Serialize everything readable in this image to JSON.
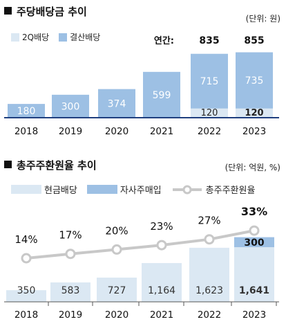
{
  "chart_data": [
    {
      "type": "bar",
      "title": "주당배당금 추이",
      "unit_label": "(단위: 원)",
      "categories": [
        "2018",
        "2019",
        "2020",
        "2021",
        "2022",
        "2023"
      ],
      "series": [
        {
          "name": "2Q배당",
          "values": [
            null,
            null,
            null,
            null,
            120,
            120
          ],
          "color": "#dbe8f3"
        },
        {
          "name": "결산배당",
          "values": [
            180,
            300,
            374,
            599,
            715,
            735
          ],
          "color": "#9dc0e4"
        }
      ],
      "annual_label": "연간:",
      "annual_totals": [
        null,
        null,
        null,
        null,
        835,
        855
      ],
      "stacked": true,
      "axis_line_color": "#1f3f7f"
    },
    {
      "type": "bar",
      "title": "총주주환원율 추이",
      "unit_label": "(단위: 억원, %)",
      "categories": [
        "2018",
        "2019",
        "2020",
        "2021",
        "2022",
        "2023"
      ],
      "series": [
        {
          "name": "현금배당",
          "values": [
            350,
            583,
            727,
            1164,
            1623,
            1641
          ],
          "color": "#dbe8f3"
        },
        {
          "name": "자사주매입",
          "values": [
            null,
            null,
            null,
            null,
            null,
            300
          ],
          "color": "#9dc0e4"
        },
        {
          "name": "총주주환원율",
          "type": "line",
          "values": [
            14,
            17,
            20,
            23,
            27,
            33
          ],
          "color": "#c8c8c8"
        }
      ],
      "cash_labels": [
        "350",
        "583",
        "727",
        "1,164",
        "1,623",
        "1,641"
      ],
      "buyback_labels": [
        null,
        null,
        null,
        null,
        null,
        "300"
      ],
      "rate_labels": [
        "14%",
        "17%",
        "20%",
        "23%",
        "27%",
        "33%"
      ],
      "stacked": true,
      "axis_line_color": "#555555"
    }
  ]
}
